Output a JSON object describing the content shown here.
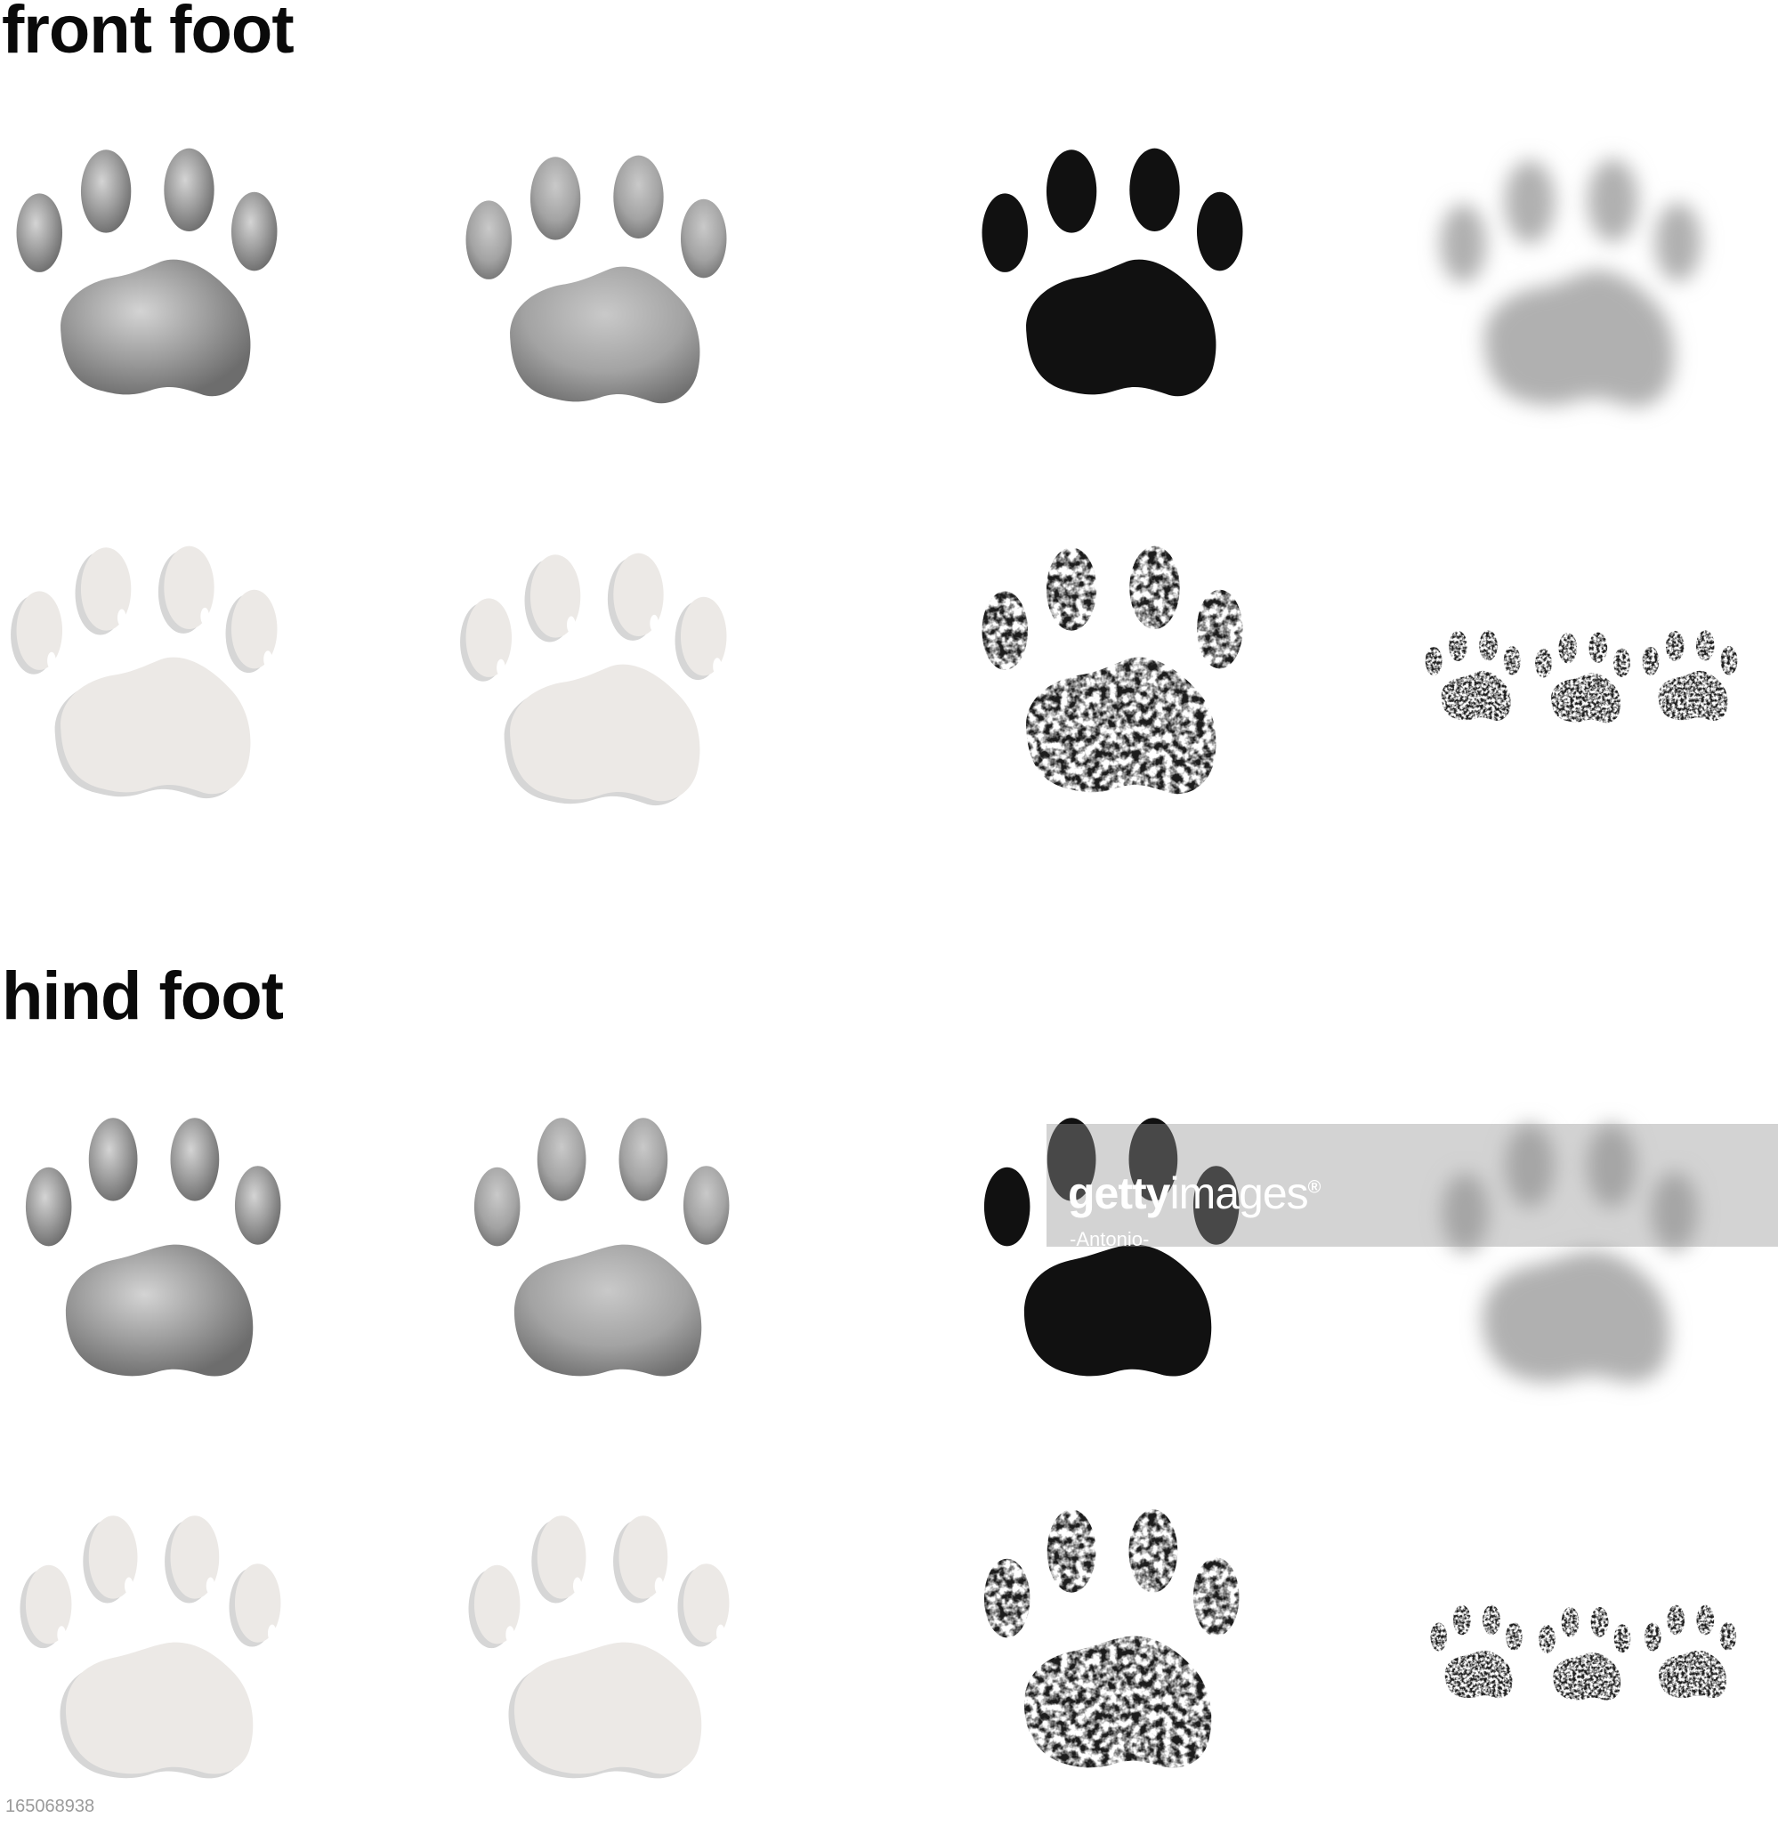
{
  "sections": {
    "front": {
      "title": "front foot"
    },
    "hind": {
      "title": "hind foot"
    }
  },
  "watermark": {
    "brand_bold": "getty",
    "brand_light": "images",
    "registered": "®",
    "credit": "-Antonio-"
  },
  "stock_id": "165068938",
  "colors": {
    "background": "#ffffff",
    "shaded_gray": "#9a9a9a",
    "solid_black": "#111111",
    "blur_gray": "#b0b0b0",
    "light_fill": "#ece9e6",
    "grunge_black": "#1a1a1a"
  },
  "paw_styles": [
    "gradient-shaded",
    "gradient-shaded",
    "solid-black",
    "blurred",
    "light-3d",
    "light-3d",
    "grunge-stamp",
    "grunge-trail"
  ]
}
